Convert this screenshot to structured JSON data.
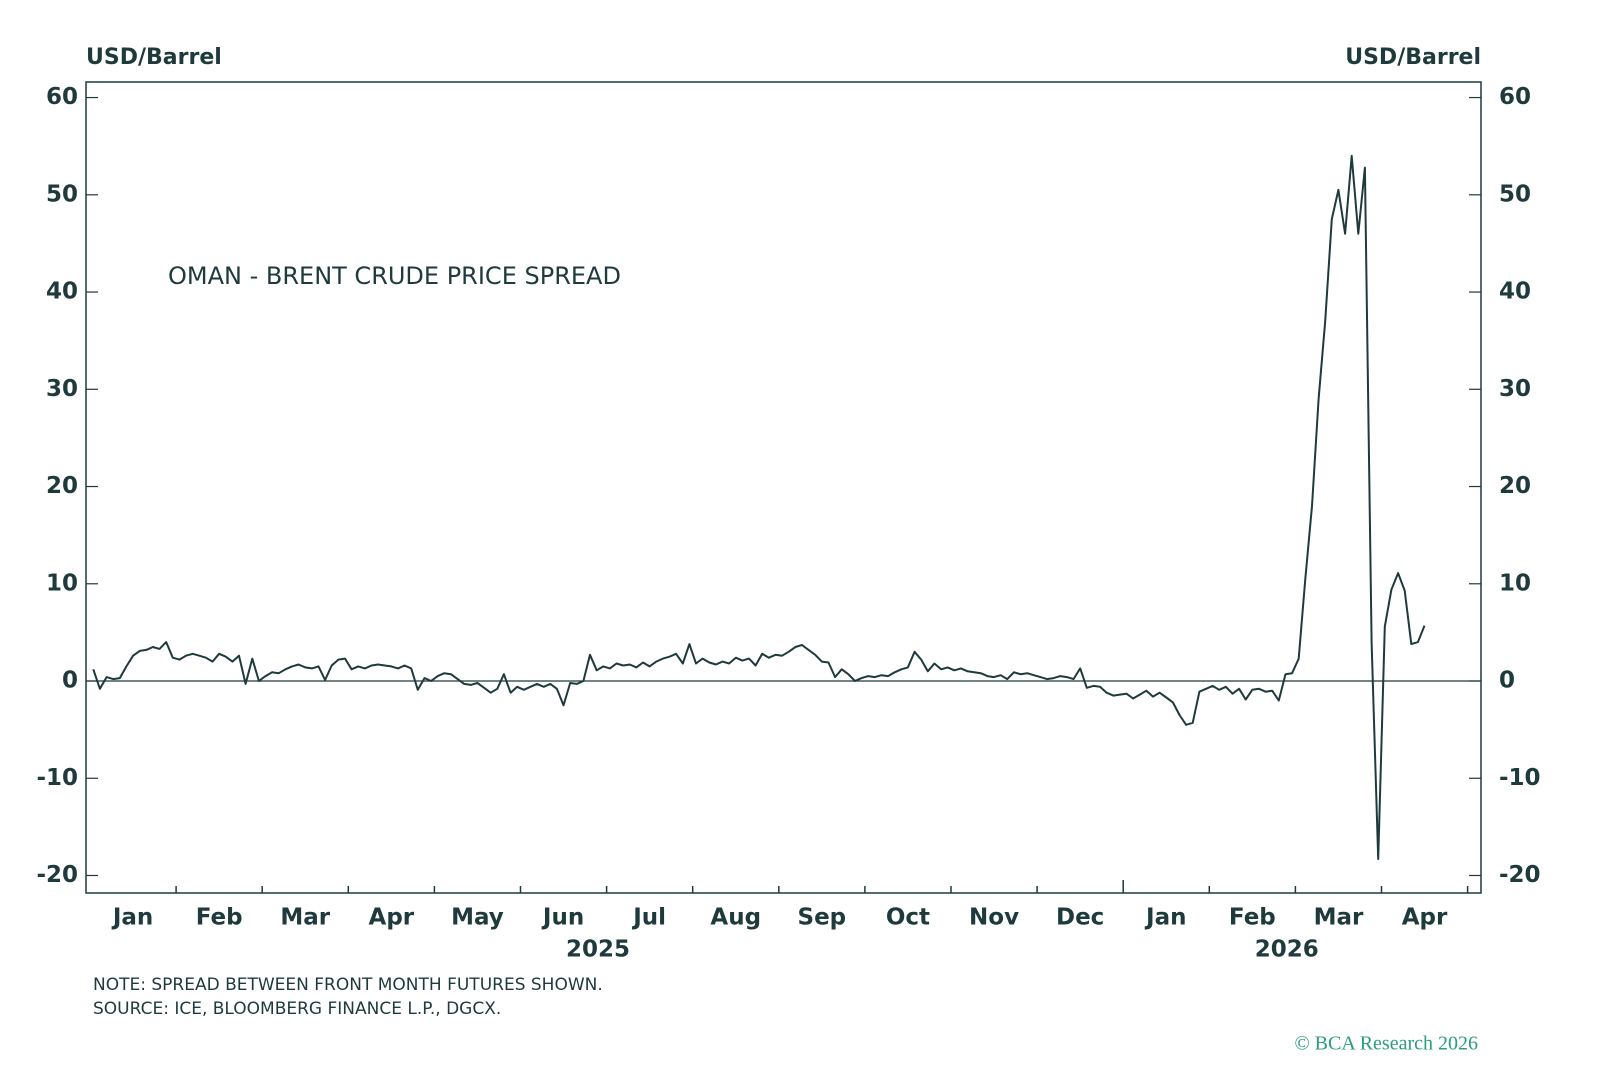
{
  "chart_data": {
    "type": "line",
    "title": "OMAN  - BRENT CRUDE PRICE SPREAD",
    "ylabel": "USD/Barrel",
    "y2label": "USD/Barrel",
    "months": [
      "Jan",
      "Feb",
      "Mar",
      "Apr",
      "May",
      "Jun",
      "Jul",
      "Aug",
      "Sep",
      "Oct",
      "Nov",
      "Dec",
      "Jan",
      "Feb",
      "Mar",
      "Apr"
    ],
    "years": [
      "2025",
      "2026"
    ],
    "ylim": [
      -21.8,
      61.6
    ],
    "yticks": [
      -20,
      -10,
      0,
      10,
      20,
      30,
      40,
      50,
      60
    ],
    "y2lim": [
      -21.8,
      61.6
    ],
    "y2ticks": [
      -20,
      -10,
      0,
      10,
      20,
      30,
      40,
      50,
      60
    ],
    "reference_line": 0,
    "series": [
      {
        "name": "OMAN - BRENT",
        "color": "#1f3a3d",
        "values": [
          1.2,
          -0.8,
          0.4,
          0.2,
          0.3,
          1.5,
          2.6,
          3.1,
          3.2,
          3.5,
          3.3,
          4.0,
          2.4,
          2.2,
          2.6,
          2.8,
          2.6,
          2.4,
          2.0,
          2.8,
          2.5,
          2.0,
          2.6,
          -0.3,
          2.3,
          0.0,
          0.5,
          0.9,
          0.8,
          1.2,
          1.5,
          1.7,
          1.4,
          1.3,
          1.5,
          0.1,
          1.6,
          2.2,
          2.3,
          1.2,
          1.5,
          1.3,
          1.6,
          1.7,
          1.6,
          1.5,
          1.3,
          1.6,
          1.3,
          -0.9,
          0.3,
          0.0,
          0.5,
          0.8,
          0.7,
          0.2,
          -0.3,
          -0.4,
          -0.2,
          -0.7,
          -1.2,
          -0.8,
          0.7,
          -1.2,
          -0.6,
          -0.9,
          -0.6,
          -0.3,
          -0.6,
          -0.3,
          -0.8,
          -2.5,
          -0.2,
          -0.3,
          0.0,
          2.7,
          1.1,
          1.5,
          1.3,
          1.8,
          1.6,
          1.7,
          1.4,
          1.9,
          1.5,
          2.0,
          2.3,
          2.5,
          2.8,
          1.8,
          3.8,
          1.8,
          2.3,
          1.9,
          1.7,
          2.0,
          1.8,
          2.4,
          2.1,
          2.3,
          1.6,
          2.8,
          2.4,
          2.7,
          2.6,
          3.0,
          3.5,
          3.7,
          3.2,
          2.7,
          2.0,
          1.9,
          0.4,
          1.2,
          0.7,
          0.0,
          0.3,
          0.5,
          0.4,
          0.6,
          0.5,
          0.9,
          1.2,
          1.4,
          3.0,
          2.2,
          1.0,
          1.8,
          1.2,
          1.4,
          1.1,
          1.3,
          1.0,
          0.9,
          0.8,
          0.5,
          0.4,
          0.6,
          0.2,
          0.9,
          0.7,
          0.8,
          0.6,
          0.4,
          0.2,
          0.3,
          0.5,
          0.4,
          0.2,
          1.3,
          -0.7,
          -0.5,
          -0.6,
          -1.2,
          -1.5,
          -1.4,
          -1.3,
          -1.8,
          -1.4,
          -1.0,
          -1.6,
          -1.2,
          -1.7,
          -2.2,
          -3.5,
          -4.5,
          -4.3,
          -1.1,
          -0.8,
          -0.5,
          -0.9,
          -0.6,
          -1.3,
          -0.8,
          -1.9,
          -0.9,
          -0.8,
          -1.1,
          -1.0,
          -2.0,
          0.7,
          0.8,
          2.3,
          10.5,
          18,
          29,
          37,
          47.5,
          50.5,
          46,
          54,
          46,
          52.8,
          4,
          -18.3,
          5.6,
          9.4,
          11.1,
          9.3,
          3.8,
          4.0,
          5.7
        ]
      }
    ],
    "note": "NOTE: SPREAD BETWEEN FRONT MONTH FUTURES SHOWN.",
    "source": "SOURCE: ICE, BLOOMBERG FINANCE L.P., DGCX.",
    "copyright": "© BCA Research 2026"
  }
}
